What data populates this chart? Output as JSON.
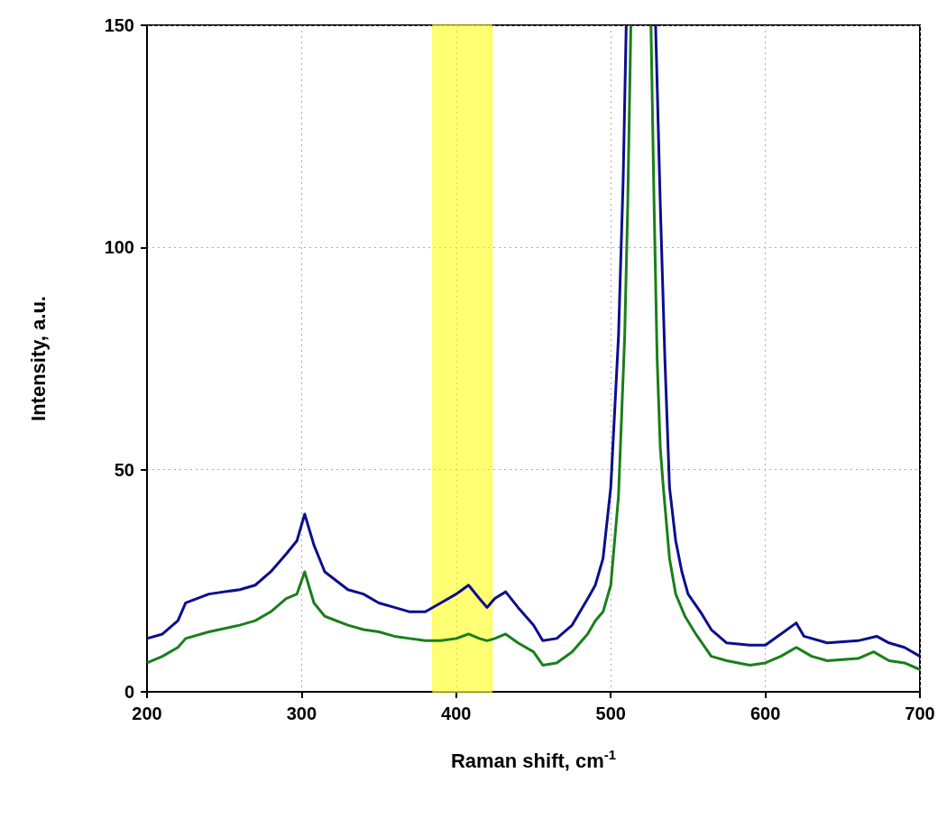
{
  "chart_data": {
    "type": "line",
    "xlabel": "Raman shift, cm$^{-1}$",
    "ylabel": "Intensity, a.u.",
    "xlim": [
      200,
      700
    ],
    "ylim": [
      0,
      150
    ],
    "xticks": [
      200,
      300,
      400,
      500,
      600,
      700
    ],
    "yticks": [
      0,
      50,
      100,
      150
    ],
    "grid": true,
    "marker": "none",
    "line_style": "solid",
    "bands": [
      {
        "axis": "x",
        "from": 385,
        "to": 423,
        "color": "#ffff00"
      }
    ],
    "series": [
      {
        "color": "#0d0d8f",
        "x": [
          200,
          210,
          220,
          225,
          240,
          260,
          270,
          280,
          290,
          297,
          302,
          308,
          315,
          330,
          340,
          350,
          360,
          370,
          380,
          390,
          400,
          408,
          415,
          420,
          425,
          432,
          440,
          450,
          456,
          465,
          475,
          486,
          490,
          495,
          500,
          505,
          508,
          510,
          520,
          529,
          532,
          535,
          538,
          542,
          546,
          550,
          558,
          565,
          575,
          590,
          600,
          610,
          620,
          625,
          640,
          660,
          672,
          680,
          690,
          700
        ],
        "values": [
          12,
          13,
          16,
          20,
          22,
          23,
          24,
          27,
          31,
          34,
          40,
          33,
          27,
          23,
          22,
          20,
          19,
          18,
          18,
          20,
          22,
          24,
          21,
          19,
          21,
          22.5,
          19,
          15,
          11.5,
          12,
          15,
          21.5,
          24,
          30,
          46,
          80,
          115,
          150,
          null,
          150,
          110,
          75,
          46,
          34,
          27,
          22,
          18,
          14,
          11,
          10.5,
          10.5,
          13,
          15.5,
          12.5,
          11,
          11.5,
          12.5,
          11,
          10,
          8
        ]
      },
      {
        "color": "#1a7f1a",
        "x": [
          200,
          210,
          220,
          225,
          240,
          260,
          270,
          280,
          290,
          297,
          302,
          308,
          315,
          330,
          340,
          350,
          360,
          370,
          380,
          390,
          400,
          408,
          415,
          420,
          425,
          432,
          440,
          450,
          456,
          465,
          475,
          485,
          490,
          495,
          500,
          505,
          509,
          511,
          513,
          520,
          526,
          528,
          530,
          532,
          534,
          538,
          542,
          548,
          555,
          565,
          575,
          590,
          600,
          610,
          620,
          630,
          640,
          660,
          670,
          680,
          690,
          700
        ],
        "values": [
          6.5,
          8,
          10,
          12,
          13.5,
          15,
          16,
          18,
          21,
          22,
          27,
          20,
          17,
          15,
          14,
          13.5,
          12.5,
          12,
          11.5,
          11.5,
          12,
          13,
          12,
          11.5,
          12,
          13,
          11,
          9,
          6,
          6.5,
          9,
          13,
          16,
          18,
          24,
          44,
          80,
          110,
          150,
          null,
          150,
          110,
          75,
          55,
          46,
          30,
          22,
          17,
          13,
          8,
          7,
          6,
          6.5,
          8,
          10,
          8,
          7,
          7.5,
          9,
          7,
          6.5,
          5
        ]
      }
    ]
  }
}
